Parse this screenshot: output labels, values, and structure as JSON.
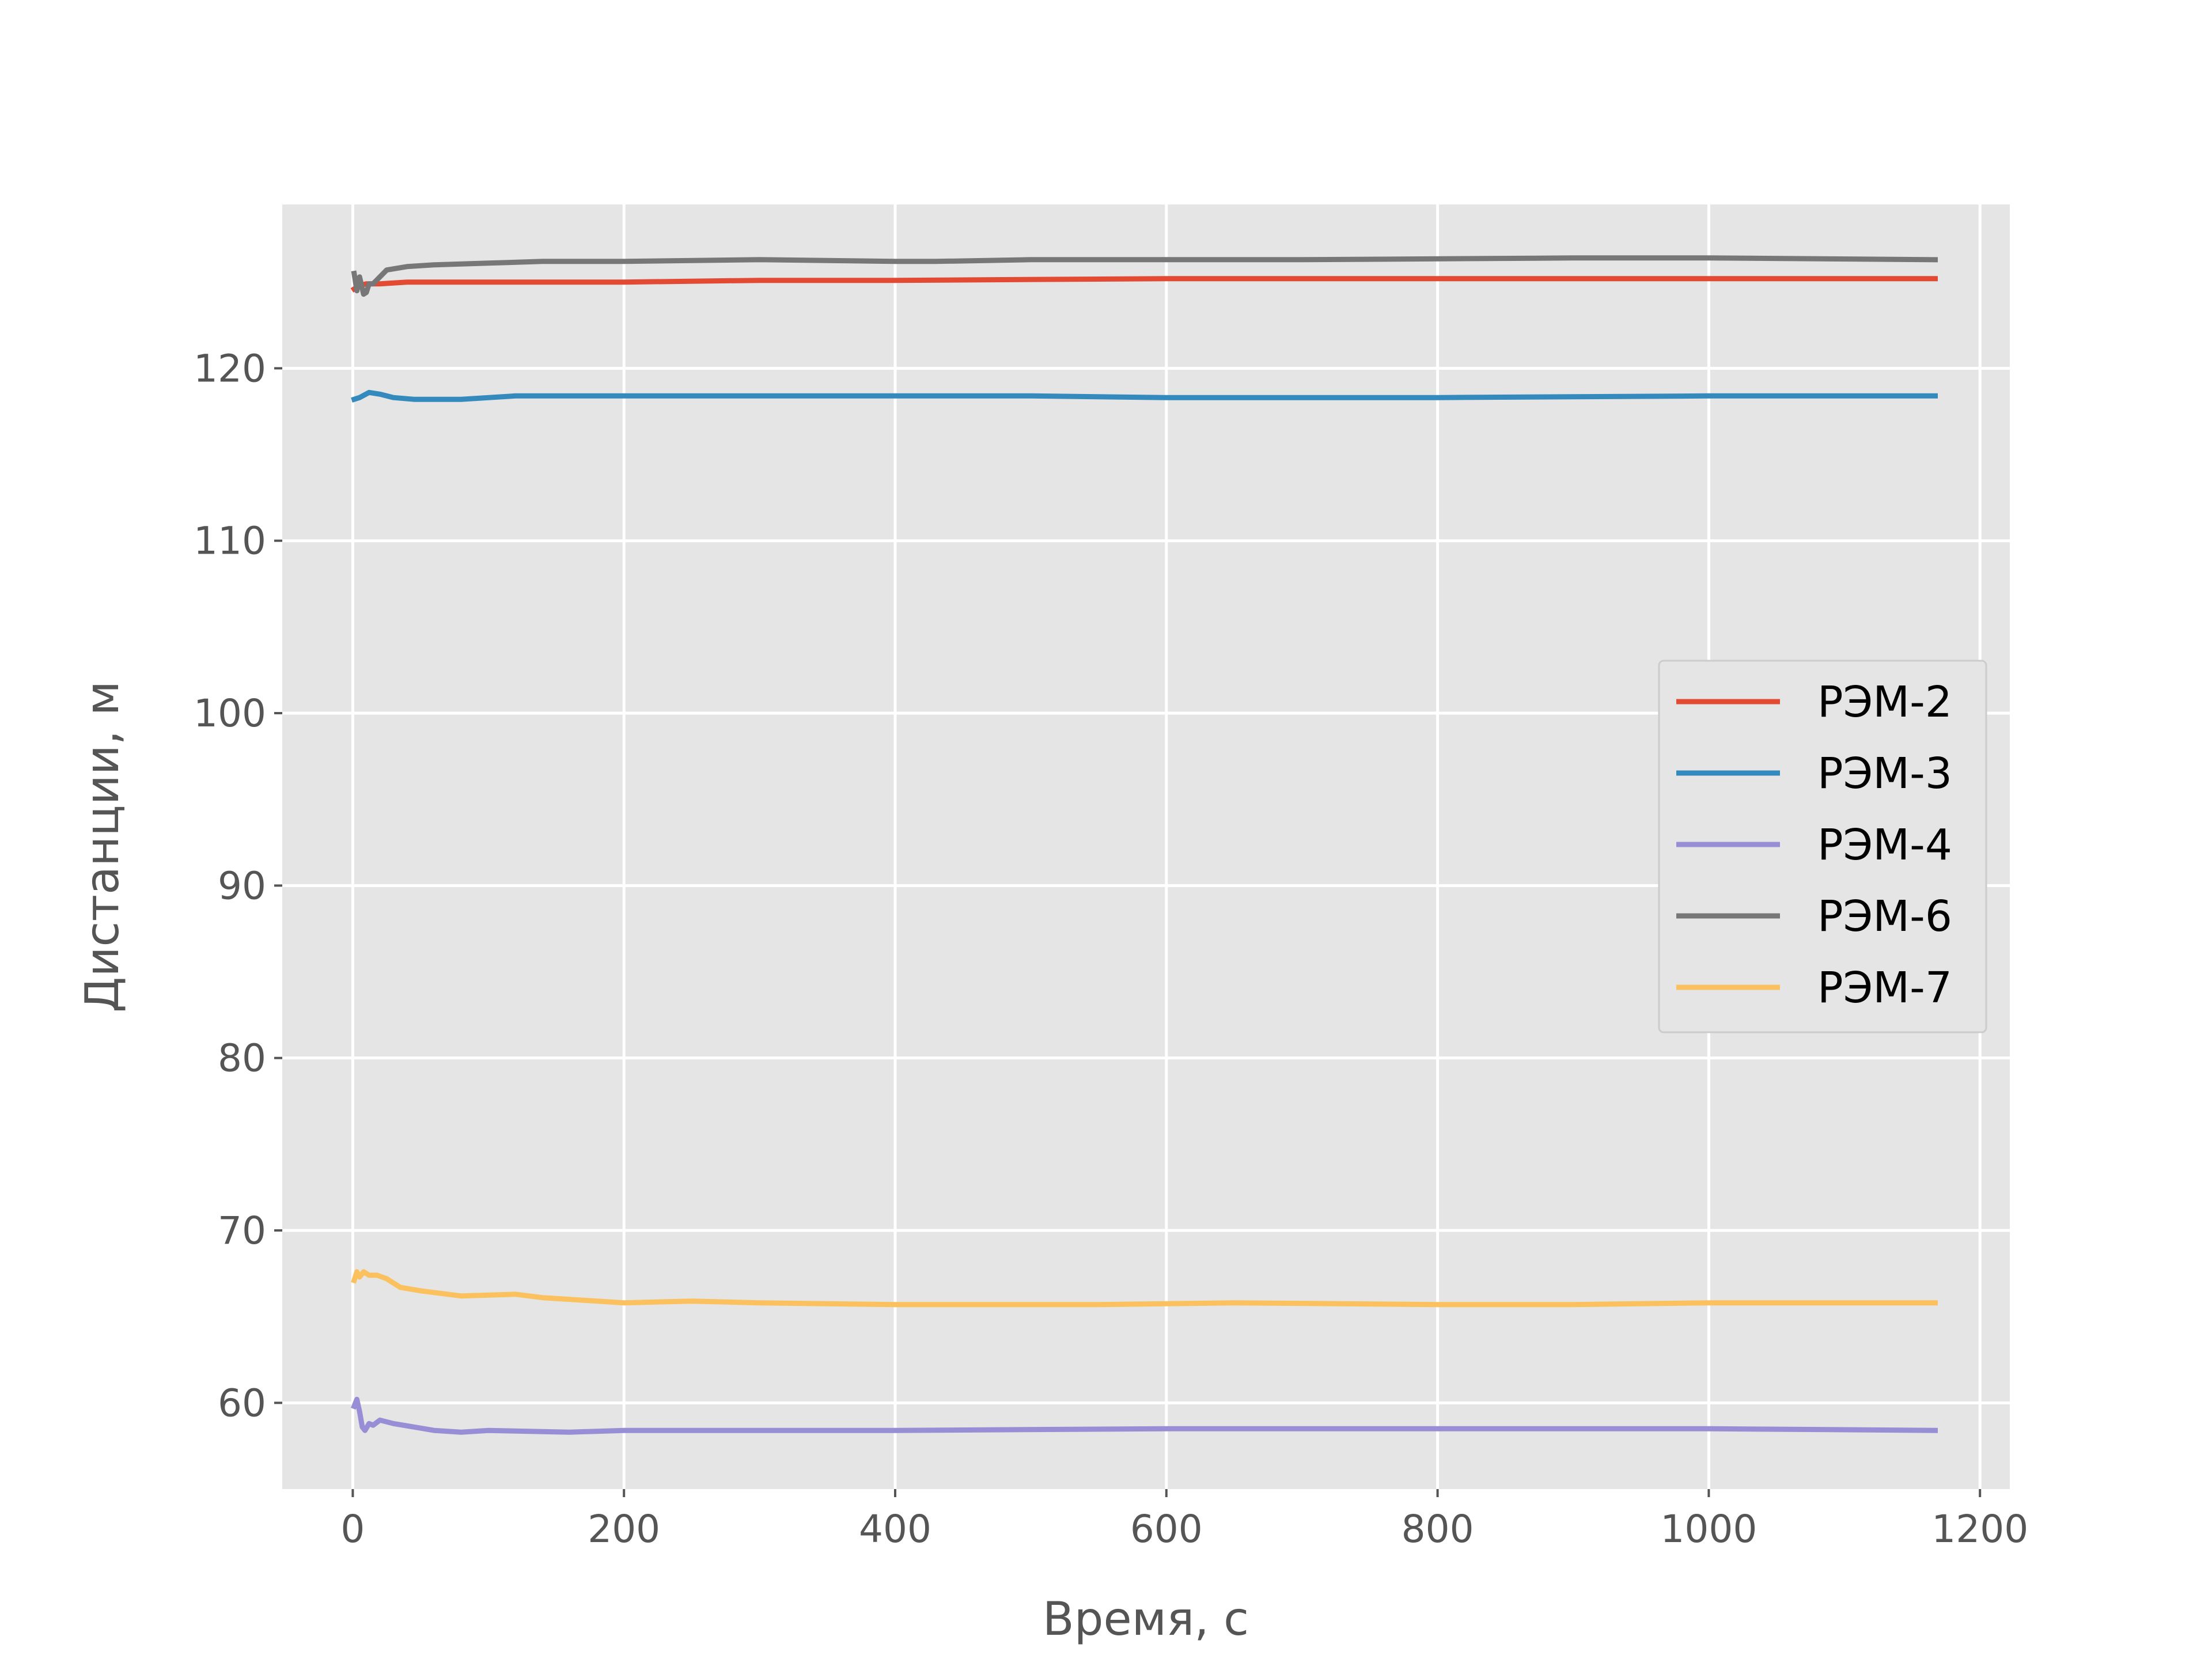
{
  "chart_data": {
    "type": "line",
    "title": "",
    "xlabel": "Время, с",
    "ylabel": "Дистанции, м",
    "xlim": [
      -52,
      1222
    ],
    "ylim": [
      55,
      129.5
    ],
    "xticks": [
      0,
      200,
      400,
      600,
      800,
      1000,
      1200
    ],
    "yticks": [
      60,
      70,
      80,
      90,
      100,
      110,
      120
    ],
    "grid": true,
    "legend_position": "center-right",
    "style": {
      "background": "#e5e5e5",
      "grid_color": "#ffffff"
    },
    "series": [
      {
        "name": "РЭМ-2",
        "color": "#e24a33",
        "x": [
          1,
          5,
          10,
          20,
          40,
          100,
          200,
          300,
          400,
          600,
          800,
          1000,
          1167
        ],
        "y": [
          124.6,
          124.8,
          124.9,
          124.9,
          125.0,
          125.0,
          125.0,
          125.1,
          125.1,
          125.2,
          125.2,
          125.2,
          125.2
        ]
      },
      {
        "name": "РЭМ-3",
        "color": "#348abd",
        "x": [
          1,
          5,
          12,
          20,
          30,
          45,
          55,
          80,
          120,
          160,
          200,
          300,
          400,
          500,
          600,
          800,
          1000,
          1167
        ],
        "y": [
          118.2,
          118.3,
          118.6,
          118.5,
          118.3,
          118.2,
          118.2,
          118.2,
          118.4,
          118.4,
          118.4,
          118.4,
          118.4,
          118.4,
          118.3,
          118.3,
          118.4,
          118.4
        ]
      },
      {
        "name": "РЭМ-4",
        "color": "#988ed5",
        "x": [
          1,
          3,
          5,
          7,
          9,
          12,
          15,
          20,
          30,
          45,
          60,
          80,
          100,
          160,
          200,
          300,
          400,
          600,
          900,
          1000,
          1167
        ],
        "y": [
          59.8,
          60.2,
          59.5,
          58.6,
          58.4,
          58.8,
          58.7,
          59.0,
          58.8,
          58.6,
          58.4,
          58.3,
          58.4,
          58.3,
          58.4,
          58.4,
          58.4,
          58.5,
          58.5,
          58.5,
          58.4
        ]
      },
      {
        "name": "РЭМ-6",
        "color": "#777777",
        "x": [
          1,
          3,
          5,
          8,
          10,
          12,
          15,
          20,
          25,
          40,
          60,
          100,
          140,
          200,
          300,
          400,
          430,
          500,
          700,
          900,
          1000,
          1167
        ],
        "y": [
          125.5,
          124.5,
          125.3,
          124.3,
          124.4,
          124.9,
          124.9,
          125.3,
          125.7,
          125.9,
          126.0,
          126.1,
          126.2,
          126.2,
          126.3,
          126.2,
          126.2,
          126.3,
          126.3,
          126.4,
          126.4,
          126.3
        ]
      },
      {
        "name": "РЭМ-7",
        "color": "#fbc15e",
        "x": [
          1,
          3,
          5,
          8,
          12,
          18,
          25,
          35,
          50,
          60,
          80,
          120,
          140,
          200,
          250,
          300,
          400,
          500,
          550,
          650,
          800,
          900,
          1000,
          1167
        ],
        "y": [
          67.1,
          67.6,
          67.3,
          67.6,
          67.4,
          67.4,
          67.2,
          66.7,
          66.5,
          66.4,
          66.2,
          66.3,
          66.1,
          65.8,
          65.9,
          65.8,
          65.7,
          65.7,
          65.7,
          65.8,
          65.7,
          65.7,
          65.8,
          65.8
        ]
      }
    ]
  }
}
